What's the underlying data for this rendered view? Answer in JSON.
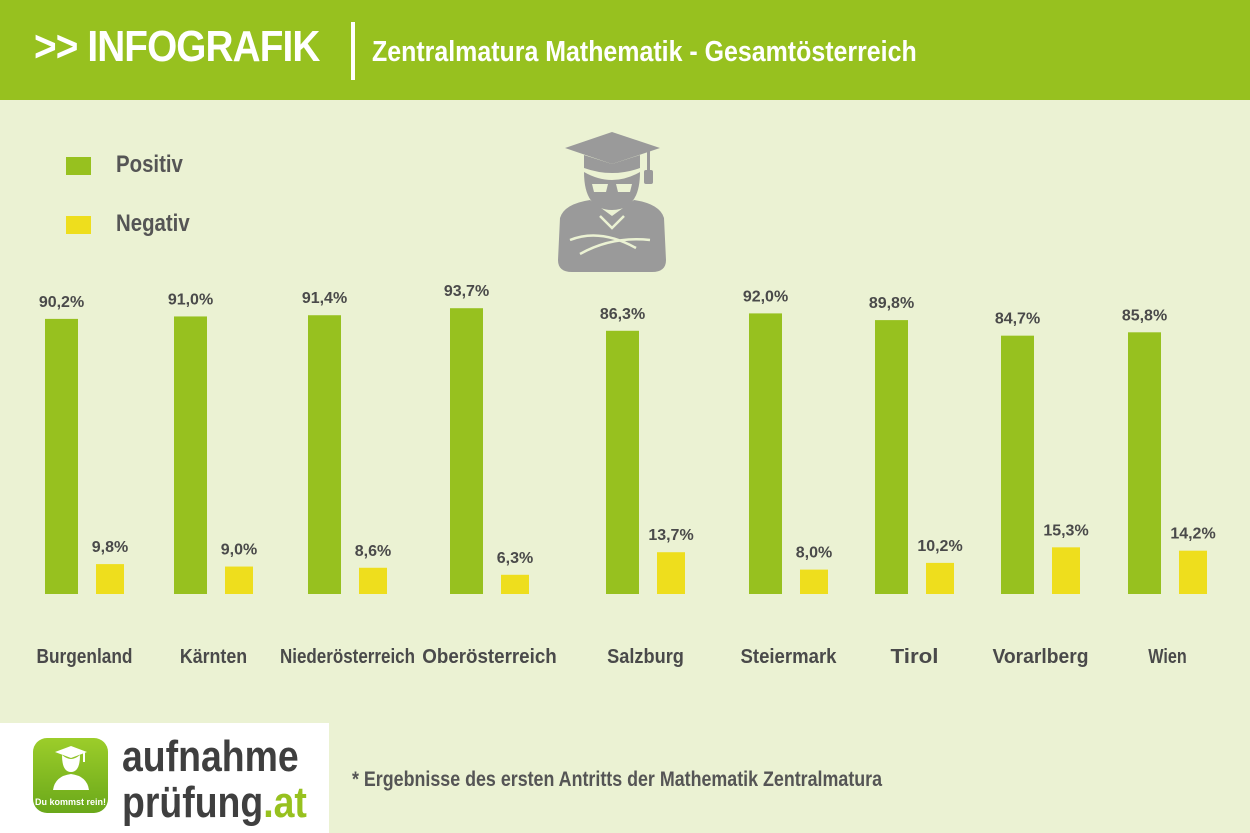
{
  "header": {
    "prefix": ">> INFOGRAFIK",
    "subtitle": "Zentralmatura Mathematik - Gesamtösterreich"
  },
  "colors": {
    "positive": "#97c11f",
    "negative": "#eede1d",
    "header_bg": "#97c11f",
    "page_bg": "#ebf2d3",
    "icon_gray": "#9a9a9a"
  },
  "legend": [
    {
      "label": "Positiv",
      "color": "#97c11f"
    },
    {
      "label": "Negativ",
      "color": "#eede1d"
    }
  ],
  "mascot_icon": "graduate-mascot-icon",
  "chart_data": {
    "type": "bar",
    "categories": [
      "Burgenland",
      "Kärnten",
      "Niederösterreich",
      "Oberösterreich",
      "Salzburg",
      "Steiermark",
      "Tirol",
      "Vorarlberg",
      "Wien"
    ],
    "series": [
      {
        "name": "Positiv",
        "values": [
          90.2,
          91.0,
          91.4,
          93.7,
          86.3,
          92.0,
          89.8,
          84.7,
          85.8
        ],
        "labels": [
          "90,2%",
          "91,0%",
          "91,4%",
          "93,7%",
          "86,3%",
          "92,0%",
          "89,8%",
          "84,7%",
          "85,8%"
        ]
      },
      {
        "name": "Negativ",
        "values": [
          9.8,
          9.0,
          8.6,
          6.3,
          13.7,
          8.0,
          10.2,
          15.3,
          14.2
        ],
        "labels": [
          "9,8%",
          "9,0%",
          "8,6%",
          "6,3%",
          "13,7%",
          "8,0%",
          "10,2%",
          "15,3%",
          "14,2%"
        ]
      }
    ],
    "ylim": [
      0,
      100
    ],
    "grid": false,
    "legend_position": "top-left"
  },
  "footer": {
    "brand_line1": "aufnahme",
    "brand_line2_main": "prüfung",
    "brand_line2_tld": ".at",
    "icon_tagline": "Du kommst rein!",
    "footnote": "* Ergebnisse des ersten Antritts der Mathematik Zentralmatura"
  }
}
